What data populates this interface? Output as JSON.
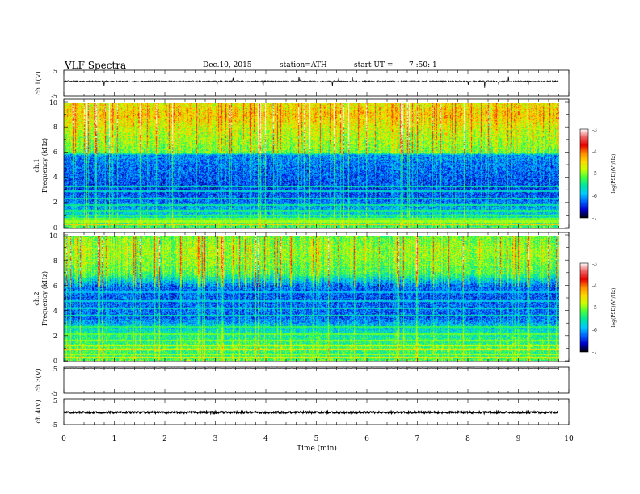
{
  "header": {
    "title": "VLF  Spectra",
    "date": "Dec.10, 2015",
    "station": "station=ATH",
    "start_prefix": "start  UT  =",
    "start_time": "7  :50: 1"
  },
  "chart_data": [
    {
      "type": "line",
      "panel": "ch1-waveform",
      "ylabel": "ch.1(V)",
      "ylim": [
        -5,
        5
      ],
      "y_ticks": [
        "5",
        "-5"
      ],
      "xlim": [
        0,
        10
      ],
      "x_unit": "min",
      "baseline": 0.7,
      "noise_amplitude": 0.3,
      "spike_amplitude": 2.5,
      "data_end": 9.8,
      "color": "#000000"
    },
    {
      "type": "heatmap",
      "panel": "ch1-spectrogram",
      "ylabel_lines": [
        "ch.1",
        "Frequency  (kHz)"
      ],
      "ylim": [
        0,
        10
      ],
      "y_ticks": [
        "0",
        "2",
        "4",
        "6",
        "8",
        "10"
      ],
      "xlim": [
        0,
        10
      ],
      "data_end": 9.8,
      "colorbar": {
        "label": "log(PSD)(V²/Hz)",
        "range": [
          -7,
          -3
        ],
        "ticks": [
          "-3",
          "-4",
          "-5",
          "-6",
          "-7"
        ],
        "colors": [
          "#000000",
          "#0000cc",
          "#0060ff",
          "#00c8ff",
          "#00e6a0",
          "#40ff40",
          "#c8ff00",
          "#ffd700",
          "#ff8c00",
          "#e80000",
          "#f06060",
          "#ffffff"
        ]
      },
      "profile_freq_khz": [
        0,
        0.5,
        1,
        2,
        3,
        4,
        5,
        5.8,
        6,
        7,
        8,
        9,
        10
      ],
      "profile_logpsd": [
        -5.3,
        -5.4,
        -5.8,
        -6.2,
        -6.4,
        -6.3,
        -6.2,
        -6.1,
        -5.1,
        -4.9,
        -4.7,
        -4.4,
        -4.6
      ],
      "line_freq_khz": [
        0.25,
        0.45,
        0.7,
        0.95,
        1.3,
        1.8,
        2.3,
        2.9,
        3.3
      ],
      "line_logpsd": [
        -4.4,
        -4.9,
        -5.1,
        -5.3,
        -5.4,
        -5.5,
        -5.6,
        -5.7,
        -5.6
      ]
    },
    {
      "type": "heatmap",
      "panel": "ch2-spectrogram",
      "ylabel_lines": [
        "ch.2",
        "Frequency  (kHz)"
      ],
      "ylim": [
        0,
        10
      ],
      "y_ticks": [
        "0",
        "2",
        "4",
        "6",
        "8",
        "10"
      ],
      "xlim": [
        0,
        10
      ],
      "data_end": 9.8,
      "colorbar": {
        "label": "log(PSD)(V²/Hz)",
        "range": [
          -7,
          -3
        ],
        "ticks": [
          "-3",
          "-4",
          "-5",
          "-6",
          "-7"
        ],
        "colors": [
          "#000000",
          "#0000cc",
          "#0060ff",
          "#00c8ff",
          "#00e6a0",
          "#40ff40",
          "#c8ff00",
          "#ffd700",
          "#ff8c00",
          "#e80000",
          "#f06060",
          "#ffffff"
        ]
      },
      "profile_freq_khz": [
        0,
        0.5,
        1,
        1.5,
        2,
        2.5,
        3,
        3.5,
        4,
        5,
        6,
        7,
        8,
        9,
        10
      ],
      "profile_logpsd": [
        -5.2,
        -5.4,
        -5.2,
        -5.4,
        -5.5,
        -5.7,
        -6.0,
        -6.3,
        -6.2,
        -6.3,
        -6.2,
        -5.2,
        -5.0,
        -4.9,
        -5.1
      ],
      "line_freq_khz": [
        0.2,
        0.5,
        0.9,
        1.2,
        1.6,
        2.1,
        2.7,
        3.6,
        4.2,
        4.8,
        5.5
      ],
      "line_logpsd": [
        -4.6,
        -4.9,
        -4.6,
        -4.8,
        -5.0,
        -5.1,
        -5.3,
        -5.6,
        -5.7,
        -5.8,
        -5.9
      ]
    },
    {
      "type": "line",
      "panel": "ch3-waveform",
      "ylabel": "ch.3(V)",
      "ylim": [
        -5,
        5
      ],
      "y_ticks": [
        "5",
        "-5"
      ],
      "xlim": [
        0,
        10
      ],
      "baseline": 4.6,
      "noise_amplitude": 0.05,
      "data_end": 9.8,
      "color": "#000000"
    },
    {
      "type": "line",
      "panel": "ch4-waveform",
      "ylabel": "ch.4(V)",
      "ylim": [
        -5,
        5
      ],
      "y_ticks": [
        "5",
        "-5"
      ],
      "xlim": [
        0,
        10
      ],
      "baseline": -0.3,
      "noise_amplitude": 0.35,
      "data_end": 9.8,
      "color": "#000000",
      "xlabel": "Time  (min)",
      "x_ticks": [
        "0",
        "1",
        "2",
        "3",
        "4",
        "5",
        "6",
        "7",
        "8",
        "9",
        "10"
      ]
    }
  ]
}
